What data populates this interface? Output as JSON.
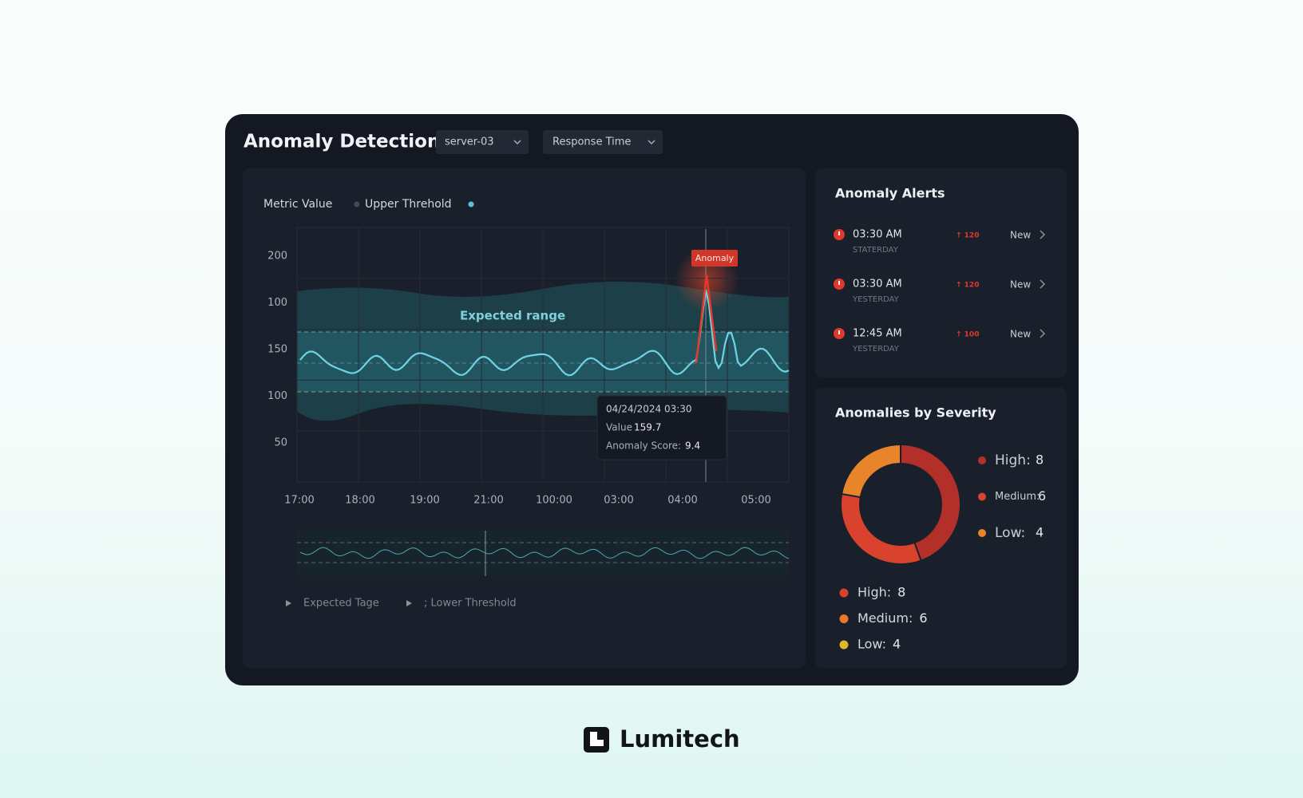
{
  "header": {
    "title": "Anomaly Detection",
    "filters": [
      "server-03",
      "Response Time"
    ]
  },
  "main_chart": {
    "legend": [
      "Metric Value",
      "Upper Threhold"
    ],
    "y_axis_labels": [
      "200",
      "100",
      "150",
      "100",
      "50"
    ],
    "x_axis_labels": [
      "17:00",
      "18:00",
      "19:00",
      "21:00",
      "100:00",
      "03:00",
      "04:00",
      "05:00"
    ],
    "band_label": "Expected range",
    "anomaly_label": "Anomaly",
    "tooltip": {
      "date": "04/24/2024 03:30",
      "value_label": "Value",
      "value": "159.7",
      "score_label": "Anomaly Score:",
      "score": "9.4"
    },
    "bottom_legend": [
      "Expected Tage",
      "; Lower Threshold"
    ]
  },
  "alerts": {
    "title": "Anomaly Alerts",
    "items": [
      {
        "time": "03:30 AM",
        "day": "STATERDAY",
        "badge": "↑ 120",
        "status": "New"
      },
      {
        "time": "03:30 AM",
        "day": "YESTERDAY",
        "badge": "↑ 120",
        "status": "New"
      },
      {
        "time": "12:45 AM",
        "day": "YESTERDAY",
        "badge": "↑ 100",
        "status": "New"
      }
    ]
  },
  "severity": {
    "title": "Anomalies by Severity",
    "chart_data": {
      "type": "pie",
      "series": [
        {
          "name": "High:",
          "value": 8,
          "color": "#b3302a"
        },
        {
          "name": "Medium:",
          "value": 6,
          "color": "#d9432e"
        },
        {
          "name": "Low:",
          "value": 4,
          "color": "#e8842a"
        }
      ]
    },
    "summary": [
      {
        "name": "High:",
        "value": 8,
        "color": "#d9412f"
      },
      {
        "name": "Medium:",
        "value": 6,
        "color": "#e8792a"
      },
      {
        "name": "Low:",
        "value": 4,
        "color": "#e0b82a"
      }
    ]
  },
  "brand": "Lumitech"
}
